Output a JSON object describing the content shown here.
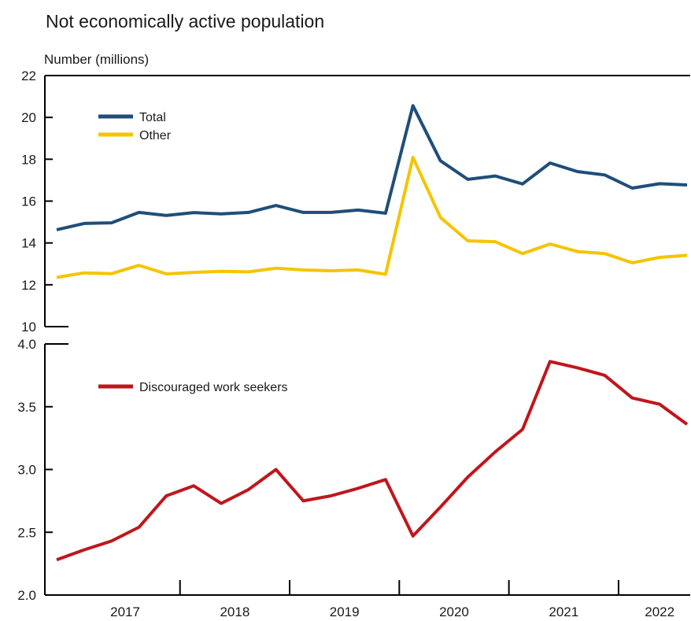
{
  "chart_data": {
    "type": "line",
    "title": "Not economically active population",
    "ylabel": "Number (millions)",
    "year_labels": [
      "2017",
      "2018",
      "2019",
      "2020",
      "2021",
      "2022"
    ],
    "x": [
      "2016 Q4",
      "2017 Q1",
      "2017 Q2",
      "2017 Q3",
      "2017 Q4",
      "2018 Q1",
      "2018 Q2",
      "2018 Q3",
      "2018 Q4",
      "2019 Q1",
      "2019 Q2",
      "2019 Q3",
      "2019 Q4",
      "2020 Q1",
      "2020 Q2",
      "2020 Q3",
      "2020 Q4",
      "2021 Q1",
      "2021 Q2",
      "2021 Q3",
      "2021 Q4",
      "2022 Q1",
      "2022 Q2",
      "2022 Q3"
    ],
    "panels": [
      {
        "ylim": [
          10,
          22
        ],
        "yticks": [
          "10",
          "12",
          "14",
          "16",
          "18",
          "20",
          "22"
        ],
        "series": [
          {
            "name": "Total",
            "color": "#1f4e79",
            "values": [
              14.63,
              14.93,
              14.96,
              15.46,
              15.31,
              15.45,
              15.39,
              15.46,
              15.79,
              15.46,
              15.46,
              15.57,
              15.42,
              20.56,
              17.93,
              17.04,
              17.2,
              16.82,
              17.82,
              17.41,
              17.25,
              16.62,
              16.83,
              16.77
            ]
          },
          {
            "name": "Other",
            "color": "#f5c400",
            "values": [
              12.35,
              12.57,
              12.53,
              12.93,
              12.52,
              12.59,
              12.64,
              12.62,
              12.79,
              12.71,
              12.67,
              12.71,
              12.5,
              18.09,
              15.22,
              14.1,
              14.06,
              13.49,
              13.95,
              13.59,
              13.49,
              13.05,
              13.31,
              13.41
            ]
          }
        ]
      },
      {
        "ylim": [
          2.0,
          4.0
        ],
        "yticks": [
          "2.0",
          "2.5",
          "3.0",
          "3.5",
          "4.0"
        ],
        "series": [
          {
            "name": "Discouraged work seekers",
            "color": "#c0161c",
            "values": [
              2.28,
              2.36,
              2.43,
              2.54,
              2.79,
              2.87,
              2.73,
              2.84,
              3.0,
              2.75,
              2.79,
              2.85,
              2.92,
              2.47,
              2.7,
              2.94,
              3.14,
              3.32,
              3.86,
              3.81,
              3.75,
              3.57,
              3.52,
              3.36
            ]
          }
        ]
      }
    ],
    "legend_position": "top-left",
    "grid": false
  }
}
